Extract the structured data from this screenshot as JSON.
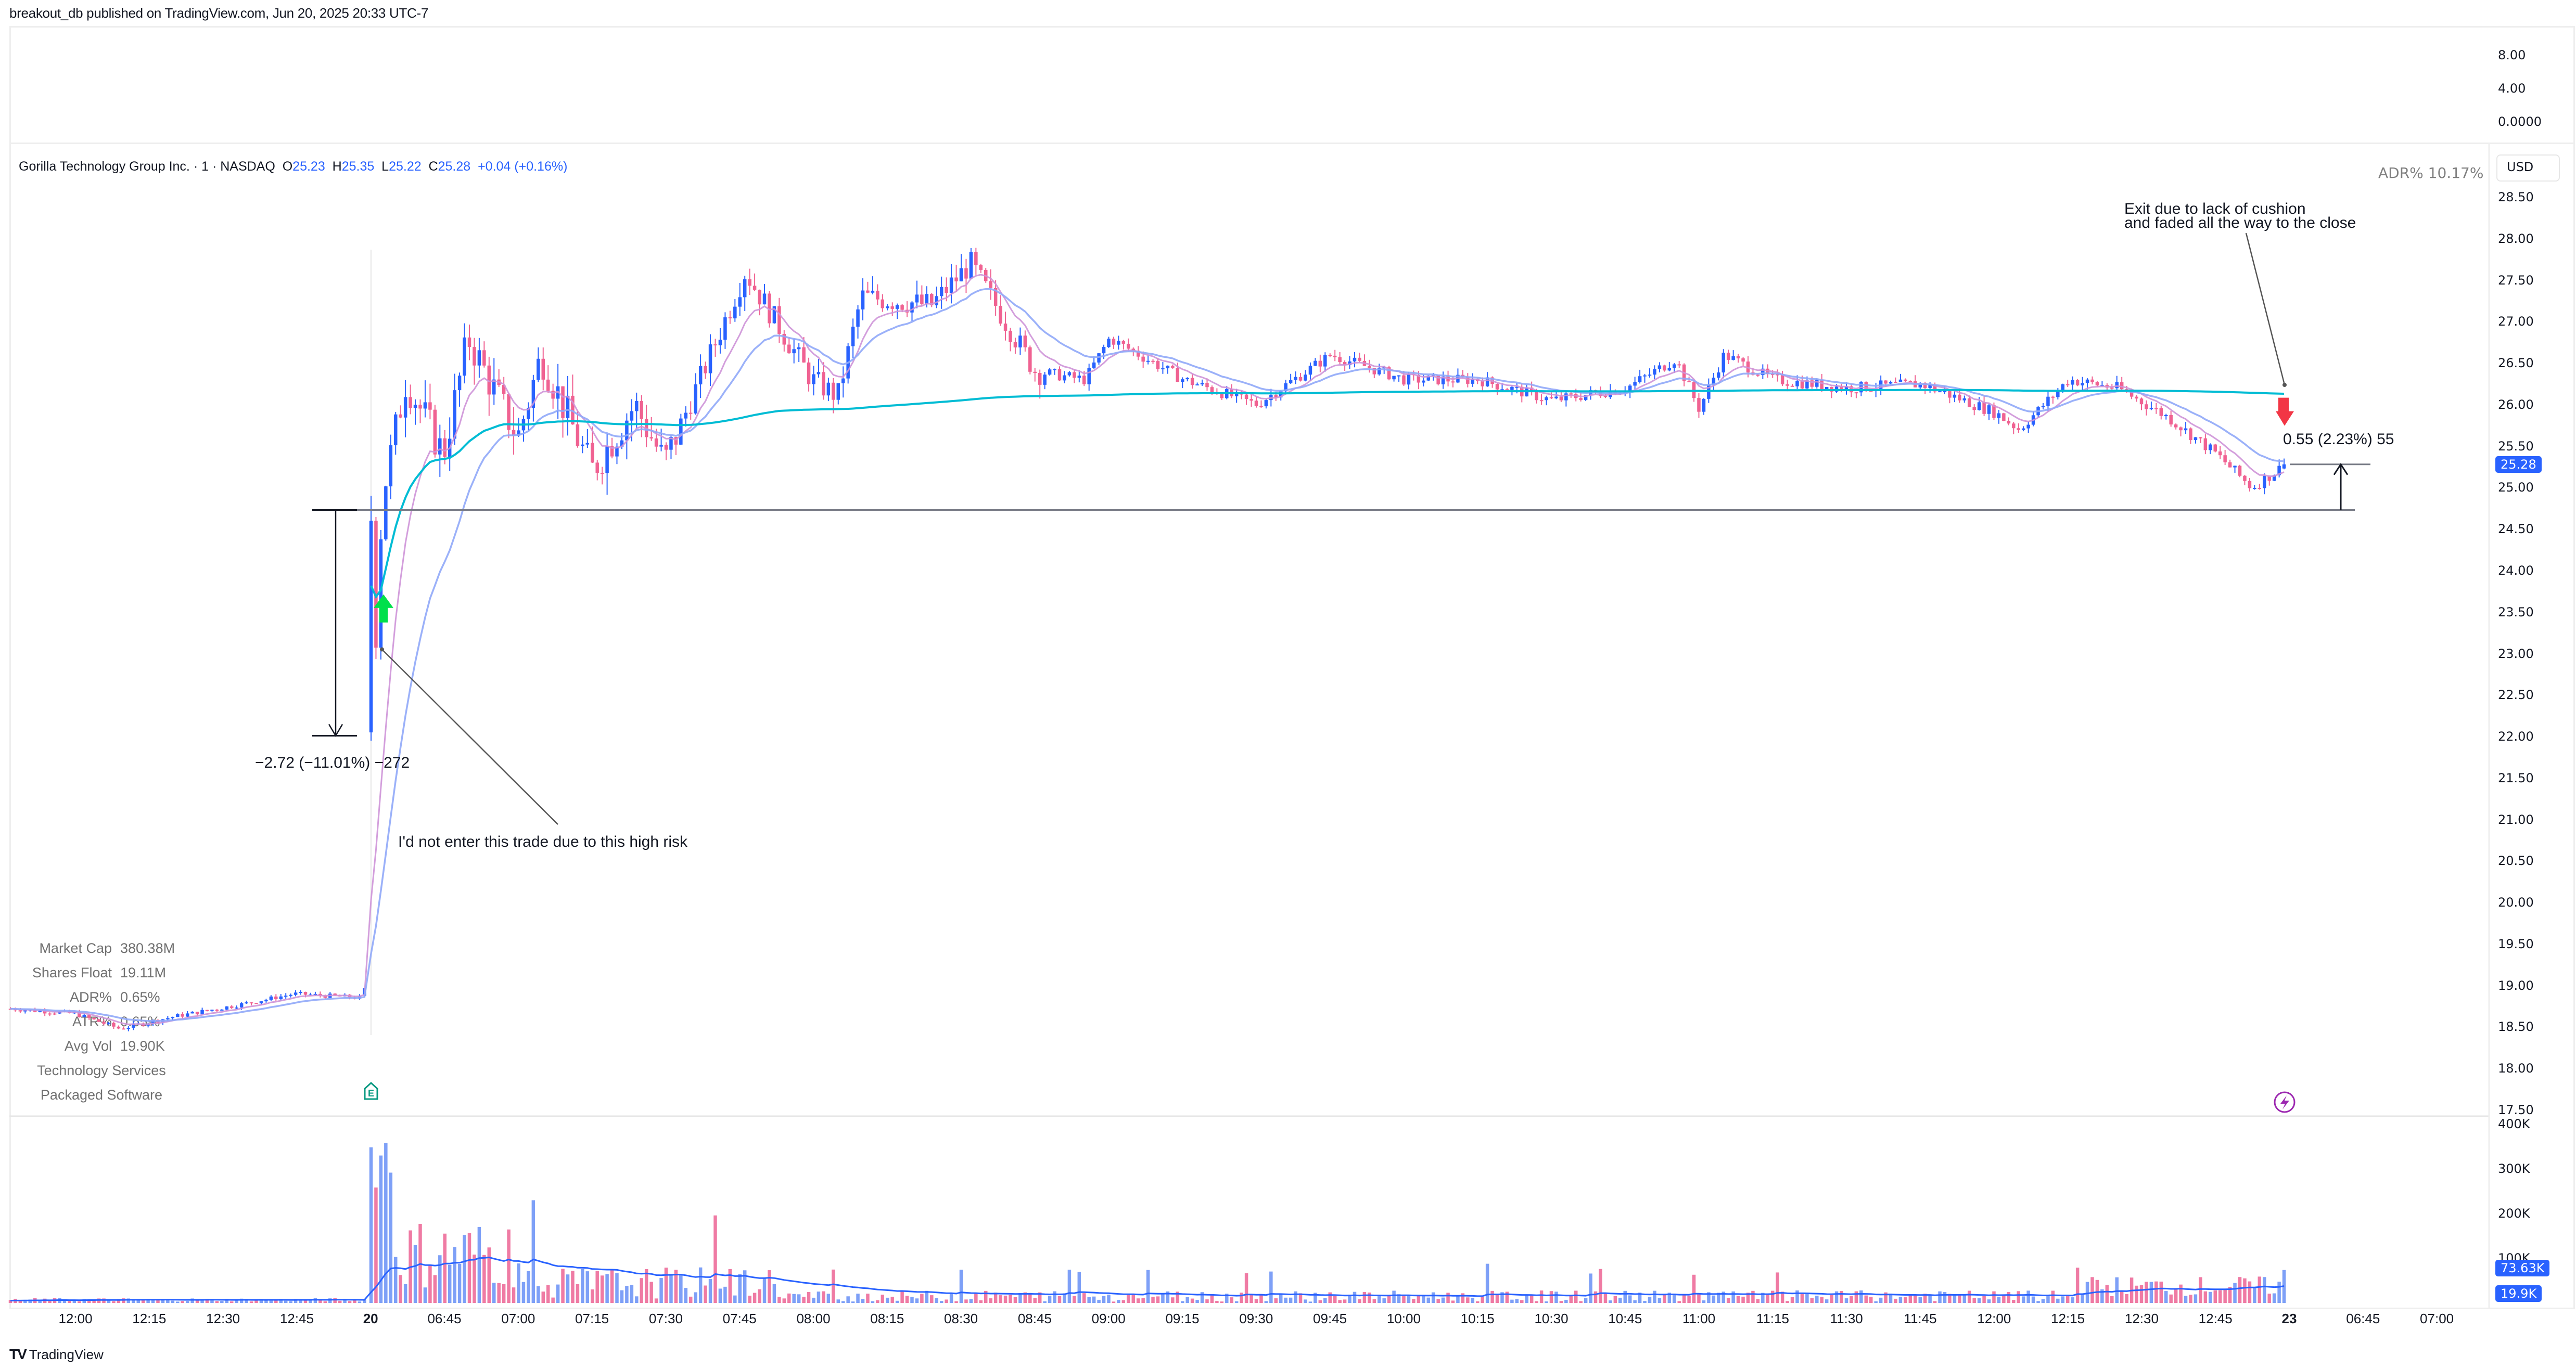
{
  "header": {
    "publish_line": "breakout_db published on TradingView.com, Jun 20, 2025 20:33 UTC-7"
  },
  "legend": {
    "symbol": "Gorilla Technology Group Inc. · 1 · NASDAQ",
    "o_label": "O",
    "o_value": "25.23",
    "h_label": "H",
    "h_value": "25.35",
    "l_label": "L",
    "l_value": "25.22",
    "c_label": "C",
    "c_value": "25.28",
    "change": "+0.04 (+0.16%)"
  },
  "adr_top": "ADR%  10.17%",
  "currency_button": "USD",
  "top_pane_scale": [
    "8.00",
    "4.00",
    "0.0000"
  ],
  "price_scale": [
    "28.50",
    "28.00",
    "27.50",
    "27.00",
    "26.50",
    "26.00",
    "25.50",
    "25.00",
    "24.50",
    "24.00",
    "23.50",
    "23.00",
    "22.50",
    "22.00",
    "21.50",
    "21.00",
    "20.50",
    "20.00",
    "19.50",
    "19.00",
    "18.50",
    "18.00",
    "17.50"
  ],
  "last_price_tag": "25.28",
  "volume_scale": [
    "400K",
    "300K",
    "200K",
    "100K"
  ],
  "volume_tags": {
    "volume": "73.63K",
    "avg": "19.9K"
  },
  "time_axis": [
    {
      "label": "12:00"
    },
    {
      "label": "12:15"
    },
    {
      "label": "12:30"
    },
    {
      "label": "12:45"
    },
    {
      "label": "20",
      "bold": true
    },
    {
      "label": "06:45"
    },
    {
      "label": "07:00"
    },
    {
      "label": "07:15"
    },
    {
      "label": "07:30"
    },
    {
      "label": "07:45"
    },
    {
      "label": "08:00"
    },
    {
      "label": "08:15"
    },
    {
      "label": "08:30"
    },
    {
      "label": "08:45"
    },
    {
      "label": "09:00"
    },
    {
      "label": "09:15"
    },
    {
      "label": "09:30"
    },
    {
      "label": "09:45"
    },
    {
      "label": "10:00"
    },
    {
      "label": "10:15"
    },
    {
      "label": "10:30"
    },
    {
      "label": "10:45"
    },
    {
      "label": "11:00"
    },
    {
      "label": "11:15"
    },
    {
      "label": "11:30"
    },
    {
      "label": "11:45"
    },
    {
      "label": "12:00"
    },
    {
      "label": "12:15"
    },
    {
      "label": "12:30"
    },
    {
      "label": "12:45"
    },
    {
      "label": "23",
      "bold": true
    },
    {
      "label": "06:45"
    },
    {
      "label": "07:00"
    }
  ],
  "info_panel": {
    "rows": [
      {
        "k": "Market Cap",
        "v": "380.38M"
      },
      {
        "k": "Shares Float",
        "v": "19.11M"
      },
      {
        "k": "ADR%",
        "v": "0.65%"
      },
      {
        "k": "ATR%",
        "v": "0.65%"
      },
      {
        "k": "Avg Vol",
        "v": "19.90K"
      }
    ],
    "sector": "Technology Services",
    "industry": "Packaged Software"
  },
  "annotations": {
    "entry_note": "I'd not enter this trade due to this high risk",
    "exit_note_line1": "Exit due to lack of cushion",
    "exit_note_line2": "and faded all the way to the close",
    "risk_measure": "−2.72 (−11.01%) −272",
    "gain_measure": "0.55 (2.23%) 55"
  },
  "colors": {
    "up": "#2962ff",
    "down": "#f06292",
    "up_vol": "#7ea0f7",
    "down_vol": "#ef7ba4",
    "vwap": "#00bcd4",
    "ema_fast": "#ce93d8",
    "ema_slow": "#90a8f8",
    "vol_ma": "#2962ff",
    "entry_arrow": "#00e04b",
    "exit_arrow": "#f23645",
    "event_icon": "#9c27b0",
    "earnings_icon": "#089981"
  },
  "footer": {
    "brand": "TradingView",
    "logo": "TV"
  },
  "chart_data": {
    "type": "candlestick",
    "title": "Gorilla Technology Group Inc. · 1 · NASDAQ",
    "interval": "1 minute",
    "ylabel": "USD",
    "ylim": [
      17.5,
      28.5
    ],
    "volume_ylim": [
      0,
      400000
    ],
    "last": {
      "open": 25.23,
      "high": 25.35,
      "low": 25.22,
      "close": 25.28,
      "change": 0.04,
      "change_pct": 0.16
    },
    "indicators": [
      "VWAP",
      "EMA fast",
      "EMA slow",
      "Volume",
      "Volume MA"
    ],
    "key_levels": {
      "entry_stop_top": 24.73,
      "entry_low": 22.01,
      "exit": 25.28,
      "stop_line": 24.73
    },
    "path_points": [
      {
        "t": "prev 11:45",
        "price": 18.72
      },
      {
        "t": "prev 12:00",
        "price": 18.66
      },
      {
        "t": "prev 12:10",
        "price": 18.48
      },
      {
        "t": "prev 12:20",
        "price": 18.62
      },
      {
        "t": "prev 12:35",
        "price": 18.78
      },
      {
        "t": "prev 12:45",
        "price": 18.9
      },
      {
        "t": "prev 12:59",
        "price": 18.85
      },
      {
        "t": "20 06:30",
        "price": 22.05
      },
      {
        "t": "06:33",
        "price": 24.9
      },
      {
        "t": "06:40",
        "price": 26.3
      },
      {
        "t": "06:45",
        "price": 25.4
      },
      {
        "t": "06:50",
        "price": 26.8
      },
      {
        "t": "07:00",
        "price": 25.6
      },
      {
        "t": "07:05",
        "price": 26.6
      },
      {
        "t": "07:15",
        "price": 25.2
      },
      {
        "t": "07:25",
        "price": 26.0
      },
      {
        "t": "07:30",
        "price": 25.3
      },
      {
        "t": "07:40",
        "price": 26.6
      },
      {
        "t": "07:47",
        "price": 27.6
      },
      {
        "t": "08:00",
        "price": 26.3
      },
      {
        "t": "08:05",
        "price": 26.1
      },
      {
        "t": "08:10",
        "price": 27.3
      },
      {
        "t": "08:25",
        "price": 27.2
      },
      {
        "t": "08:33",
        "price": 27.7
      },
      {
        "t": "08:45",
        "price": 26.4
      },
      {
        "t": "08:55",
        "price": 26.3
      },
      {
        "t": "09:00",
        "price": 26.8
      },
      {
        "t": "09:15",
        "price": 26.3
      },
      {
        "t": "09:30",
        "price": 26.0
      },
      {
        "t": "09:45",
        "price": 26.6
      },
      {
        "t": "10:00",
        "price": 26.3
      },
      {
        "t": "10:15",
        "price": 26.3
      },
      {
        "t": "10:30",
        "price": 26.05
      },
      {
        "t": "10:45",
        "price": 26.2
      },
      {
        "t": "10:55",
        "price": 26.55
      },
      {
        "t": "11:00",
        "price": 25.95
      },
      {
        "t": "11:05",
        "price": 26.6
      },
      {
        "t": "11:15",
        "price": 26.3
      },
      {
        "t": "11:30",
        "price": 26.2
      },
      {
        "t": "11:45",
        "price": 26.25
      },
      {
        "t": "12:00",
        "price": 25.9
      },
      {
        "t": "12:05",
        "price": 25.7
      },
      {
        "t": "12:15",
        "price": 26.3
      },
      {
        "t": "12:25",
        "price": 26.2
      },
      {
        "t": "12:35",
        "price": 25.85
      },
      {
        "t": "12:45",
        "price": 25.4
      },
      {
        "t": "12:52",
        "price": 25.0
      },
      {
        "t": "12:59",
        "price": 25.28
      }
    ],
    "vwap_end": 26.05
  }
}
